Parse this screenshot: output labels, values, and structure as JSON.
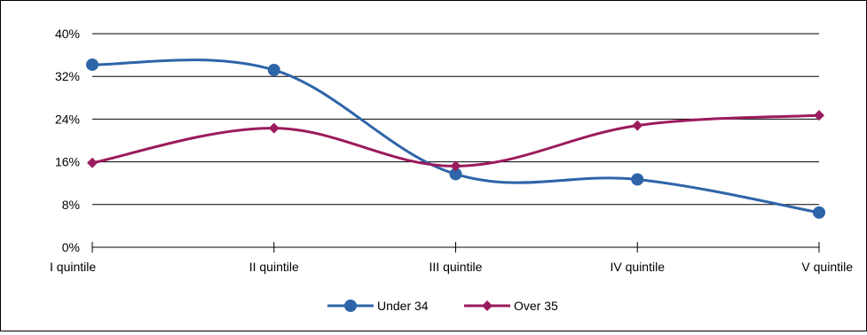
{
  "chart_data": {
    "type": "line",
    "categories": [
      "I quintile",
      "II quintile",
      "III quintile",
      "IV quintile",
      "V quintile"
    ],
    "y_ticks": [
      "0%",
      "8%",
      "16%",
      "24%",
      "32%",
      "40%"
    ],
    "ylim": [
      0,
      40
    ],
    "y_unit": "%",
    "grid": true,
    "legend_position": "bottom",
    "smooth": true,
    "series": [
      {
        "name": "Under 34",
        "values": [
          34.2,
          33.2,
          13.7,
          12.7,
          6.5
        ],
        "color": "#2E64A8",
        "marker": "circle"
      },
      {
        "name": "Over 35",
        "values": [
          15.8,
          22.3,
          15.2,
          22.8,
          24.7
        ],
        "color": "#9B1B5C",
        "marker": "diamond"
      }
    ]
  }
}
